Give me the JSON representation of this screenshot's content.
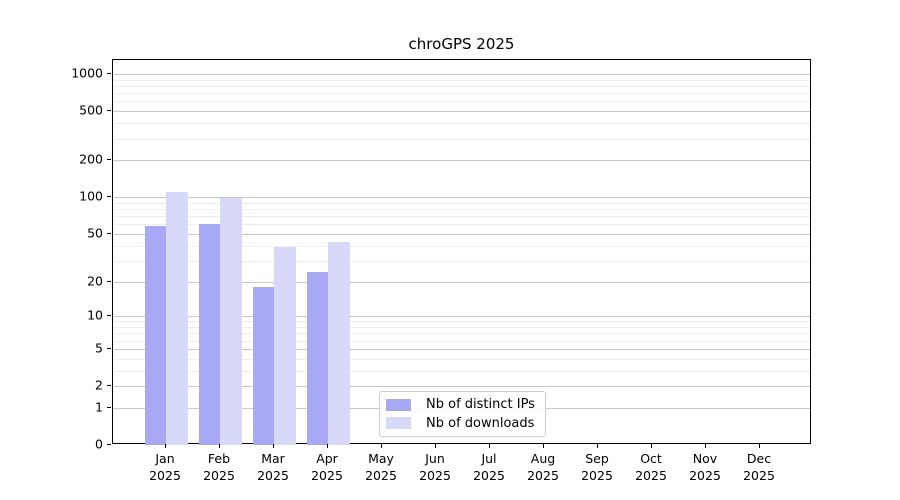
{
  "chart_data": {
    "type": "bar",
    "title": "chroGPS 2025",
    "scale": "log10(1+y)",
    "xlabel": "",
    "ylabel": "",
    "categories": [
      "Jan 2025",
      "Feb 2025",
      "Mar 2025",
      "Apr 2025",
      "May 2025",
      "Jun 2025",
      "Jul 2025",
      "Aug 2025",
      "Sep 2025",
      "Oct 2025",
      "Nov 2025",
      "Dec 2025"
    ],
    "series": [
      {
        "name": "Nb of distinct IPs",
        "color": "#a8a8f5",
        "values": [
          58,
          60,
          18,
          24,
          0,
          0,
          0,
          0,
          0,
          0,
          0,
          0
        ]
      },
      {
        "name": "Nb of downloads",
        "color": "#d8d8f8",
        "values": [
          110,
          98,
          39,
          43,
          0,
          0,
          0,
          0,
          0,
          0,
          0,
          0
        ]
      }
    ],
    "ylim": [
      0,
      1300
    ],
    "yticks_major": [
      0,
      1,
      2,
      5,
      10,
      20,
      50,
      100,
      200,
      500,
      1000
    ],
    "yticks_minor": [
      3,
      4,
      6,
      7,
      8,
      9,
      30,
      40,
      60,
      70,
      80,
      90,
      300,
      400,
      600,
      700,
      800,
      900
    ],
    "grid": "on",
    "legend_position": "lower-center"
  },
  "colors": {
    "grid_major": "#c9c9c9",
    "grid_minor": "#ededed",
    "axis": "#000000",
    "background": "#ffffff"
  }
}
